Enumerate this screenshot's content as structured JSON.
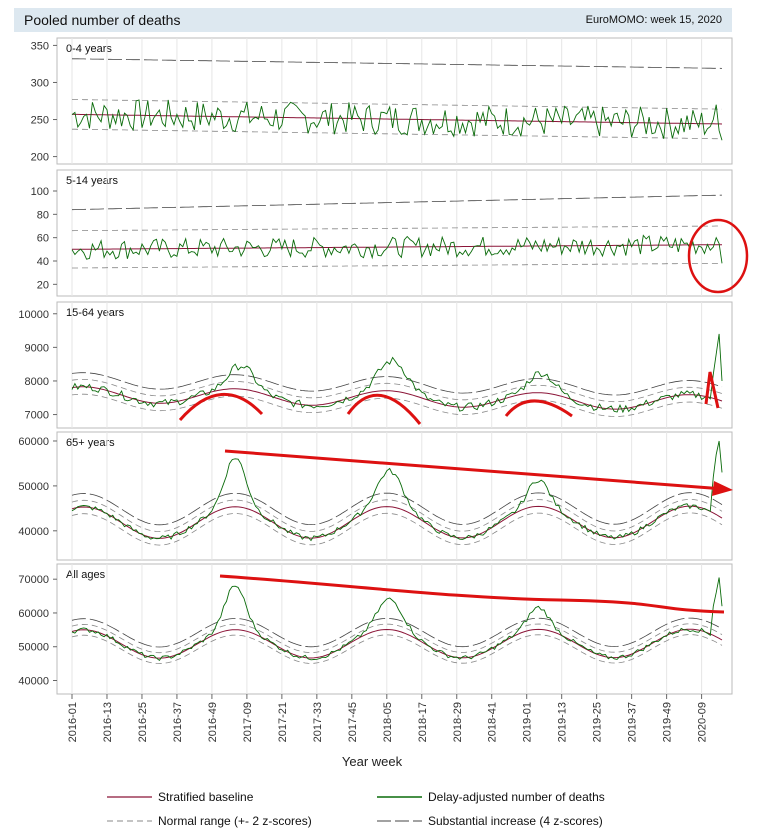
{
  "header": {
    "title": "Pooled number of deaths",
    "subtitle": "EuroMOMO: week 15, 2020"
  },
  "colors": {
    "observed": "#0a6b0a",
    "baseline": "#8b1538",
    "normal": "#888888",
    "substantial": "#444444",
    "annotation": "#dd1111",
    "header_bg": "#dde8f0"
  },
  "chart_data": {
    "type": "line",
    "xlabel": "Year week",
    "x_ticks": [
      "2016-01",
      "2016-13",
      "2016-25",
      "2016-37",
      "2016-49",
      "2017-09",
      "2017-21",
      "2017-33",
      "2017-45",
      "2018-05",
      "2018-17",
      "2018-29",
      "2018-41",
      "2019-01",
      "2019-13",
      "2019-25",
      "2019-37",
      "2019-49",
      "2020-09"
    ],
    "weeks_total": 224,
    "legend": {
      "baseline": "Stratified baseline",
      "observed": "Delay-adjusted number of deaths",
      "normal": "Normal range (+- 2 z-scores)",
      "substantial": "Substantial increase (4 z-scores)"
    },
    "panels": [
      {
        "label": "0-4 years",
        "yticks": [
          200,
          250,
          300,
          350
        ],
        "ylim": [
          190,
          360
        ],
        "baseline": {
          "start": 257,
          "end": 244,
          "amp": 0
        },
        "normal_sd": 20,
        "sub_sd": 75,
        "observed_peaks": [],
        "noise": 22,
        "final": [
          250,
          270,
          235,
          222
        ]
      },
      {
        "label": "5-14 years",
        "yticks": [
          20,
          40,
          60,
          80,
          100
        ],
        "ylim": [
          10,
          118
        ],
        "baseline": {
          "start": 50,
          "end": 54,
          "amp": 0
        },
        "normal_sd": 16,
        "sub_sd": 34,
        "observed_peaks": [],
        "noise": 9,
        "final": [
          52,
          60,
          55,
          38
        ]
      },
      {
        "label": "15-64 years",
        "yticks": [
          7000,
          8000,
          9000,
          10000
        ],
        "ylim": [
          6600,
          10350
        ],
        "baseline": {
          "start": 7600,
          "end": 7350,
          "amp": 230
        },
        "normal_sd": 220,
        "sub_sd": 420,
        "observed_peaks": [
          {
            "week": 58,
            "h": 700,
            "w": 6
          },
          {
            "week": 110,
            "h": 900,
            "w": 7
          },
          {
            "week": 161,
            "h": 600,
            "w": 6
          }
        ],
        "noise": 120,
        "final": [
          8200,
          8800,
          9400,
          8000
        ]
      },
      {
        "label": "65+ years",
        "yticks": [
          40000,
          50000,
          60000
        ],
        "ylim": [
          33500,
          62000
        ],
        "baseline": {
          "start": 41800,
          "end": 42000,
          "amp": 3500
        },
        "normal_sd": 1500,
        "sub_sd": 3000,
        "observed_peaks": [
          {
            "week": 56,
            "h": 11000,
            "w": 5
          },
          {
            "week": 109,
            "h": 8000,
            "w": 6
          },
          {
            "week": 160,
            "h": 6000,
            "w": 5
          }
        ],
        "noise": 600,
        "final": [
          52000,
          57000,
          60000,
          53000
        ]
      },
      {
        "label": "All ages",
        "yticks": [
          40000,
          50000,
          60000,
          70000
        ],
        "ylim": [
          36000,
          74500
        ],
        "baseline": {
          "start": 50800,
          "end": 51000,
          "amp": 4200
        },
        "normal_sd": 1600,
        "sub_sd": 3300,
        "observed_peaks": [
          {
            "week": 56,
            "h": 13000,
            "w": 5
          },
          {
            "week": 109,
            "h": 9000,
            "w": 6
          },
          {
            "week": 160,
            "h": 6500,
            "w": 5
          }
        ],
        "noise": 700,
        "final": [
          62000,
          66000,
          70500,
          62000
        ]
      }
    ]
  }
}
